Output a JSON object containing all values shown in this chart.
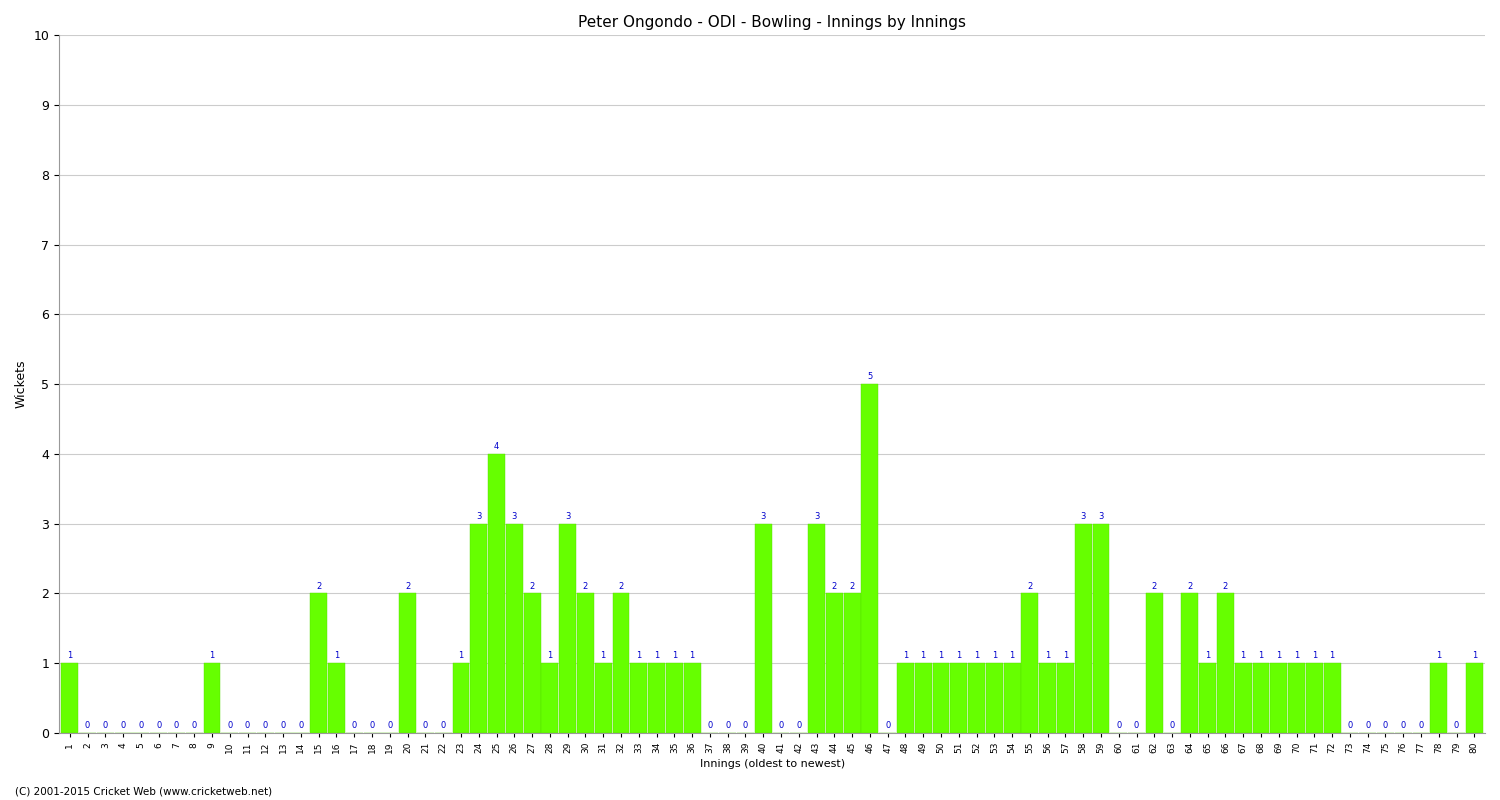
{
  "title": "Peter Ongondo - ODI - Bowling - Innings by Innings",
  "xlabel": "Innings (oldest to newest)",
  "ylabel": "Wickets",
  "bar_color": "#66ff00",
  "bar_edge_color": "#55dd00",
  "label_color": "#0000cc",
  "background_color": "#ffffff",
  "grid_color": "#cccccc",
  "ylim": [
    0,
    10
  ],
  "yticks": [
    0,
    1,
    2,
    3,
    4,
    5,
    6,
    7,
    8,
    9,
    10
  ],
  "copyright": "(C) 2001-2015 Cricket Web (www.cricketweb.net)",
  "innings_labels": [
    "1",
    "2",
    "3",
    "4",
    "5",
    "6",
    "7",
    "8",
    "9",
    "10",
    "11",
    "12",
    "13",
    "14",
    "15",
    "16",
    "17",
    "18",
    "19",
    "20",
    "21",
    "22",
    "23",
    "24",
    "25",
    "26",
    "27",
    "28",
    "29",
    "30",
    "31",
    "32",
    "33",
    "34",
    "35",
    "36",
    "37",
    "38",
    "39",
    "40",
    "41",
    "42",
    "43",
    "44",
    "45",
    "46",
    "47",
    "48",
    "49",
    "50",
    "51",
    "52",
    "53",
    "54",
    "55",
    "56",
    "57",
    "58",
    "59",
    "60",
    "61",
    "62",
    "63",
    "64",
    "65",
    "66",
    "67",
    "68",
    "69",
    "70",
    "71",
    "72",
    "73",
    "74",
    "75",
    "76",
    "77",
    "78",
    "79",
    "80"
  ],
  "wickets": [
    1,
    0,
    0,
    0,
    0,
    0,
    0,
    0,
    1,
    0,
    0,
    0,
    0,
    0,
    2,
    1,
    0,
    0,
    0,
    2,
    0,
    0,
    1,
    3,
    4,
    3,
    2,
    1,
    3,
    2,
    1,
    2,
    1,
    1,
    1,
    1,
    0,
    0,
    0,
    3,
    0,
    0,
    3,
    2,
    2,
    5,
    0,
    1,
    1,
    1,
    1,
    1,
    1,
    1,
    2,
    1,
    1,
    3,
    3,
    0,
    0,
    2,
    0,
    2,
    1,
    2,
    1,
    1,
    1,
    1,
    1,
    1,
    0,
    0,
    0,
    0,
    0,
    1,
    0,
    1
  ]
}
